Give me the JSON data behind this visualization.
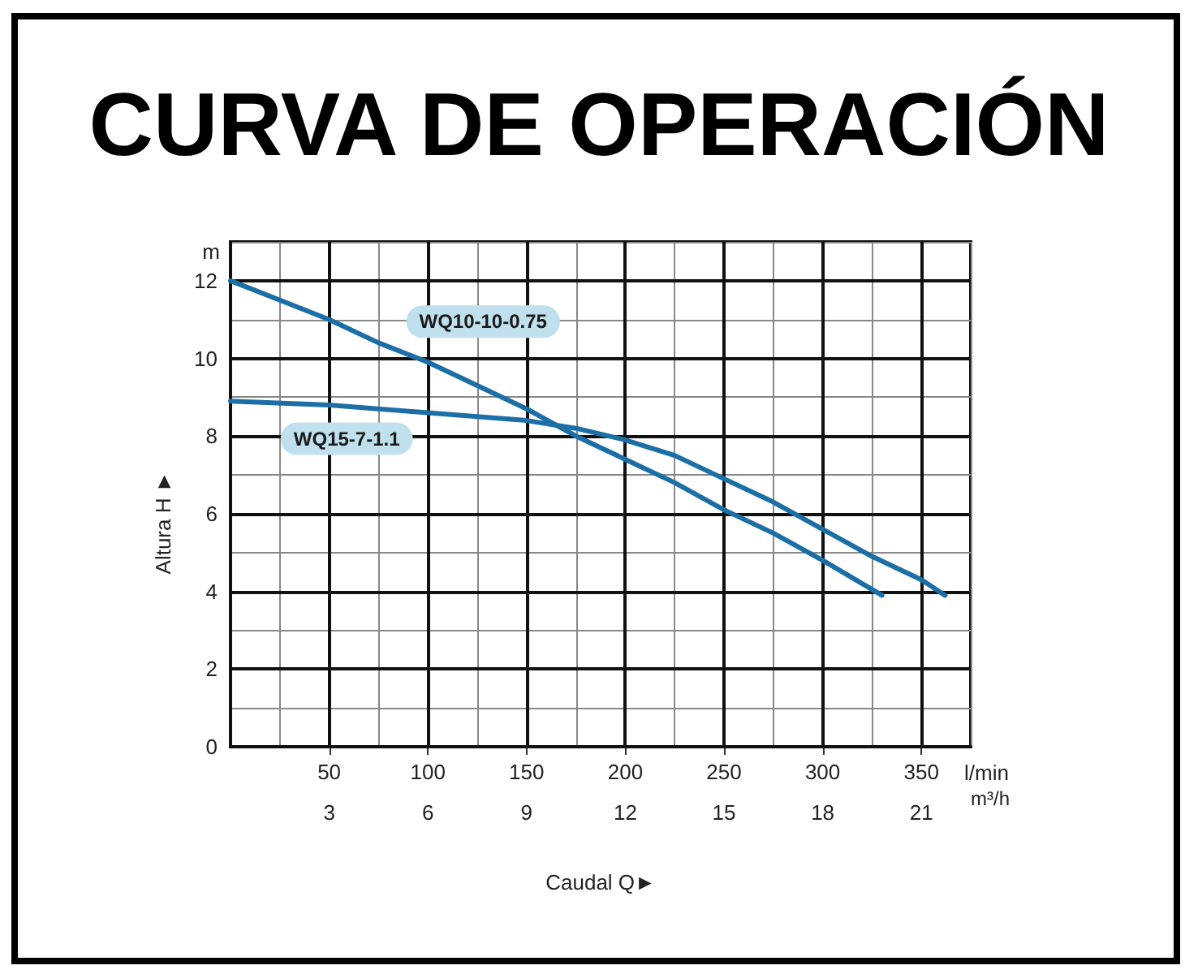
{
  "chart_data": {
    "type": "line",
    "title": "CURVA DE OPERACIÓN",
    "xlabel": "Caudal Q►",
    "ylabel": "Altura H ►",
    "x2label": "m³/h",
    "annotations": [
      "m",
      "l/min"
    ],
    "series": [
      {
        "name": "WQ10-10-0.75",
        "color": "#1b6fa6",
        "x": [
          0,
          25,
          50,
          75,
          100,
          125,
          150,
          175,
          200,
          225,
          250,
          275,
          300,
          330
        ],
        "values": [
          12,
          11.5,
          11,
          10.4,
          9.9,
          9.3,
          8.7,
          8.0,
          7.4,
          6.8,
          6.1,
          5.5,
          4.8,
          3.9
        ]
      },
      {
        "name": "WQ15-7-1.1",
        "color": "#1b6fa6",
        "x": [
          0,
          50,
          100,
          150,
          175,
          200,
          225,
          250,
          275,
          300,
          325,
          350,
          362
        ],
        "values": [
          8.9,
          8.8,
          8.6,
          8.4,
          8.2,
          7.9,
          7.5,
          6.9,
          6.3,
          5.6,
          4.9,
          4.3,
          3.9
        ]
      }
    ],
    "xlim": [
      0,
      375
    ],
    "xticks": [
      50,
      100,
      150,
      200,
      250,
      300,
      350
    ],
    "x2lim": [
      0,
      22.5
    ],
    "x2ticks": [
      3,
      6,
      9,
      12,
      15,
      18,
      21
    ],
    "ylim": [
      0,
      13
    ],
    "yticks": [
      0,
      2,
      4,
      6,
      8,
      10,
      12
    ],
    "grid": true
  }
}
